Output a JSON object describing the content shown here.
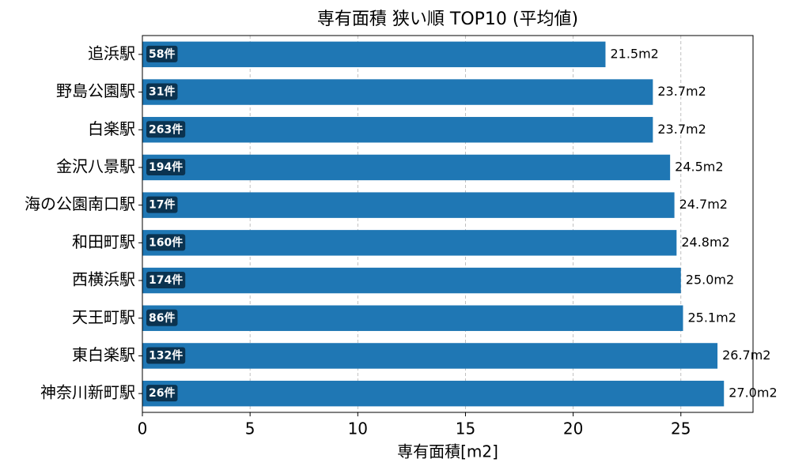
{
  "chart_data": {
    "type": "barh",
    "title": "専有面積 狭い順 TOP10 (平均値)",
    "x_label": "専有面積[m2]",
    "categories": [
      "追浜駅",
      "野島公園駅",
      "白楽駅",
      "金沢八景駅",
      "海の公園南口駅",
      "和田町駅",
      "西横浜駅",
      "天王町駅",
      "東白楽駅",
      "神奈川新町駅"
    ],
    "values": [
      21.5,
      23.7,
      23.7,
      24.5,
      24.7,
      24.8,
      25.0,
      25.1,
      26.7,
      27.0
    ],
    "value_labels": [
      "21.5m2",
      "23.7m2",
      "23.7m2",
      "24.5m2",
      "24.7m2",
      "24.8m2",
      "25.0m2",
      "25.1m2",
      "26.7m2",
      "27.0m2"
    ],
    "bar_labels": [
      "58件",
      "31件",
      "263件",
      "194件",
      "17件",
      "160件",
      "174件",
      "86件",
      "132件",
      "26件"
    ],
    "color": "#1f77b4",
    "xlim": [
      0,
      28.35
    ],
    "xticks": [
      0,
      5,
      10,
      15,
      20,
      25
    ],
    "grid": true
  }
}
